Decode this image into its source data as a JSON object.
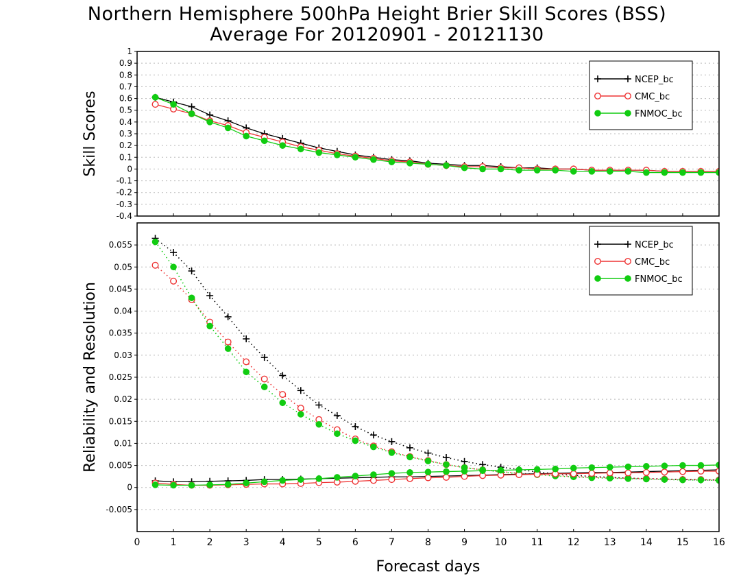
{
  "title": {
    "line1": "Northern Hemisphere 500hPa Height Brier Skill Scores (BSS)",
    "line2": "Average For 20120901 - 20121130"
  },
  "colors": {
    "NCEP_bc": "#000000",
    "CMC_bc": "#ee3333",
    "FNMOC_bc": "#11cc11"
  },
  "chart_data": [
    {
      "type": "line",
      "title": "Northern Hemisphere 500hPa Height Brier Skill Scores (BSS)",
      "subtitle": "Average For 20120901 - 20121130",
      "ylabel": "Skill Scores",
      "xlabel": "",
      "xlim": [
        0,
        16
      ],
      "ylim": [
        -0.4,
        1
      ],
      "yticks": [
        -0.4,
        -0.3,
        -0.2,
        -0.1,
        0,
        0.1,
        0.2,
        0.3,
        0.4,
        0.5,
        0.6,
        0.7,
        0.8,
        0.9,
        1
      ],
      "ytick_labels": [
        "-0.4",
        "-0.3",
        "-0.2",
        "-0.1",
        "0",
        "0.1",
        "0.2",
        "0.3",
        "0.4",
        "0.5",
        "0.6",
        "0.7",
        "0.8",
        "0.9",
        "1"
      ],
      "grid": true,
      "legend_position": "top-right",
      "x": [
        0.5,
        1,
        1.5,
        2,
        2.5,
        3,
        3.5,
        4,
        4.5,
        5,
        5.5,
        6,
        6.5,
        7,
        7.5,
        8,
        8.5,
        9,
        9.5,
        10,
        10.5,
        11,
        11.5,
        12,
        12.5,
        13,
        13.5,
        14,
        14.5,
        15,
        15.5,
        16
      ],
      "series": [
        {
          "name": "NCEP_bc",
          "marker": "plus",
          "line": "solid",
          "values": [
            0.61,
            0.57,
            0.53,
            0.46,
            0.41,
            0.35,
            0.3,
            0.26,
            0.22,
            0.18,
            0.15,
            0.12,
            0.1,
            0.08,
            0.07,
            0.05,
            0.04,
            0.03,
            0.03,
            0.02,
            0.01,
            0.01,
            0.0,
            0.0,
            -0.01,
            -0.01,
            -0.01,
            -0.01,
            -0.02,
            -0.02,
            -0.02,
            -0.02
          ]
        },
        {
          "name": "CMC_bc",
          "marker": "open-circle",
          "line": "solid",
          "values": [
            0.55,
            0.51,
            0.47,
            0.41,
            0.37,
            0.31,
            0.27,
            0.23,
            0.19,
            0.16,
            0.13,
            0.11,
            0.09,
            0.07,
            0.06,
            0.04,
            0.03,
            0.02,
            0.02,
            0.01,
            0.01,
            0.0,
            0.0,
            0.0,
            -0.01,
            -0.01,
            -0.01,
            -0.01,
            -0.02,
            -0.02,
            -0.02,
            -0.02
          ]
        },
        {
          "name": "FNMOC_bc",
          "marker": "filled-circle",
          "line": "solid",
          "values": [
            0.61,
            0.55,
            0.47,
            0.4,
            0.35,
            0.28,
            0.24,
            0.2,
            0.17,
            0.14,
            0.12,
            0.1,
            0.08,
            0.06,
            0.05,
            0.04,
            0.03,
            0.01,
            0.0,
            0.0,
            -0.01,
            -0.01,
            -0.01,
            -0.02,
            -0.02,
            -0.02,
            -0.02,
            -0.03,
            -0.03,
            -0.03,
            -0.03,
            -0.03
          ]
        }
      ]
    },
    {
      "type": "line",
      "ylabel": "Reliability and Resolution",
      "xlabel": "Forecast days",
      "xlim": [
        0,
        16
      ],
      "ylim": [
        -0.01,
        0.06
      ],
      "yticks": [
        -0.005,
        0,
        0.005,
        0.01,
        0.015,
        0.02,
        0.025,
        0.03,
        0.035,
        0.04,
        0.045,
        0.05,
        0.055
      ],
      "ytick_labels": [
        "-0.005",
        "0",
        "0.005",
        "0.01",
        "0.015",
        "0.02",
        "0.025",
        "0.03",
        "0.035",
        "0.04",
        "0.045",
        "0.05",
        "0.055"
      ],
      "xticks": [
        0,
        1,
        2,
        3,
        4,
        5,
        6,
        7,
        8,
        9,
        10,
        11,
        12,
        13,
        14,
        15,
        16
      ],
      "xtick_labels": [
        "0",
        "1",
        "2",
        "3",
        "4",
        "5",
        "6",
        "7",
        "8",
        "9",
        "10",
        "11",
        "12",
        "13",
        "14",
        "15",
        "16"
      ],
      "grid": true,
      "legend_position": "top-right",
      "x": [
        0.5,
        1,
        1.5,
        2,
        2.5,
        3,
        3.5,
        4,
        4.5,
        5,
        5.5,
        6,
        6.5,
        7,
        7.5,
        8,
        8.5,
        9,
        9.5,
        10,
        10.5,
        11,
        11.5,
        12,
        12.5,
        13,
        13.5,
        14,
        14.5,
        15,
        15.5,
        16
      ],
      "series": [
        {
          "name": "NCEP_bc",
          "metric": "resolution",
          "marker": "plus",
          "line": "dotted",
          "values": [
            0.0565,
            0.0533,
            0.0491,
            0.0435,
            0.0387,
            0.0337,
            0.0295,
            0.0254,
            0.022,
            0.0187,
            0.0163,
            0.0138,
            0.0119,
            0.0104,
            0.009,
            0.0078,
            0.0068,
            0.0059,
            0.0052,
            0.0046,
            0.0041,
            0.0035,
            0.0031,
            0.0028,
            0.0025,
            0.0023,
            0.0021,
            0.002,
            0.0019,
            0.0018,
            0.0017,
            0.0017
          ]
        },
        {
          "name": "CMC_bc",
          "metric": "resolution",
          "marker": "open-circle",
          "line": "dotted",
          "values": [
            0.0504,
            0.0468,
            0.0426,
            0.0375,
            0.033,
            0.0285,
            0.0246,
            0.0211,
            0.018,
            0.0154,
            0.0131,
            0.011,
            0.0094,
            0.0081,
            0.007,
            0.0061,
            0.0052,
            0.0045,
            0.004,
            0.0036,
            0.0032,
            0.003,
            0.0027,
            0.0025,
            0.0023,
            0.0022,
            0.0021,
            0.002,
            0.0019,
            0.0018,
            0.0018,
            0.0017
          ]
        },
        {
          "name": "FNMOC_bc",
          "metric": "resolution",
          "marker": "filled-circle",
          "line": "dotted",
          "values": [
            0.0557,
            0.05,
            0.043,
            0.0366,
            0.0315,
            0.0262,
            0.0228,
            0.0192,
            0.0166,
            0.0143,
            0.0122,
            0.0106,
            0.0092,
            0.0079,
            0.0069,
            0.006,
            0.0052,
            0.0045,
            0.004,
            0.0035,
            0.0031,
            0.0029,
            0.0026,
            0.0024,
            0.0022,
            0.0021,
            0.002,
            0.0019,
            0.0018,
            0.0017,
            0.0017,
            0.0016
          ]
        },
        {
          "name": "NCEP_bc",
          "metric": "reliability",
          "marker": "plus",
          "line": "solid",
          "values": [
            0.0015,
            0.0013,
            0.0013,
            0.0014,
            0.0015,
            0.0016,
            0.0018,
            0.0018,
            0.0019,
            0.002,
            0.0021,
            0.0022,
            0.0023,
            0.0024,
            0.0024,
            0.0025,
            0.0026,
            0.0027,
            0.0028,
            0.0029,
            0.003,
            0.0031,
            0.0032,
            0.0033,
            0.0034,
            0.0034,
            0.0035,
            0.0036,
            0.0037,
            0.0038,
            0.0039,
            0.004
          ]
        },
        {
          "name": "CMC_bc",
          "metric": "reliability",
          "marker": "open-circle",
          "line": "solid",
          "values": [
            0.001,
            0.0007,
            0.0005,
            0.0005,
            0.0006,
            0.0007,
            0.0008,
            0.0008,
            0.0009,
            0.0011,
            0.0012,
            0.0014,
            0.0016,
            0.0018,
            0.002,
            0.0022,
            0.0023,
            0.0025,
            0.0027,
            0.0028,
            0.0029,
            0.003,
            0.0031,
            0.0031,
            0.0032,
            0.0033,
            0.0033,
            0.0034,
            0.0035,
            0.0036,
            0.0037,
            0.0037
          ]
        },
        {
          "name": "FNMOC_bc",
          "metric": "reliability",
          "marker": "filled-circle",
          "line": "solid",
          "values": [
            0.0006,
            0.0005,
            0.0005,
            0.0006,
            0.0007,
            0.001,
            0.0013,
            0.0016,
            0.0018,
            0.002,
            0.0023,
            0.0026,
            0.0029,
            0.0032,
            0.0034,
            0.0035,
            0.0036,
            0.0037,
            0.0038,
            0.0039,
            0.004,
            0.0041,
            0.0042,
            0.0044,
            0.0045,
            0.0046,
            0.0047,
            0.0048,
            0.0049,
            0.005,
            0.005,
            0.0051
          ]
        }
      ]
    }
  ]
}
